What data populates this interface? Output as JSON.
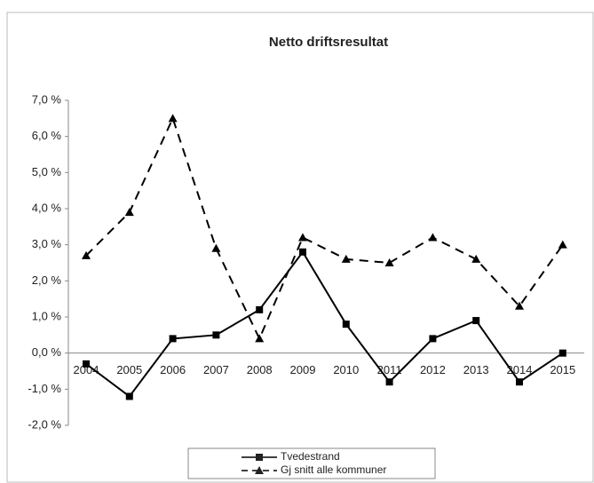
{
  "chart_data": {
    "type": "line",
    "title": "Netto driftsresultat",
    "categories": [
      "2004",
      "2005",
      "2006",
      "2007",
      "2008",
      "2009",
      "2010",
      "2011",
      "2012",
      "2013",
      "2014",
      "2015"
    ],
    "series": [
      {
        "name": "Tvedestrand",
        "color": "#000000",
        "dash": false,
        "marker": "square",
        "values": [
          -0.3,
          -1.2,
          0.4,
          0.5,
          1.2,
          2.8,
          0.8,
          -0.8,
          0.4,
          0.9,
          -0.8,
          0.0
        ]
      },
      {
        "name": "Gj snitt alle kommuner",
        "color": "#000000",
        "dash": true,
        "marker": "triangle",
        "values": [
          2.7,
          3.9,
          6.5,
          2.9,
          0.4,
          3.2,
          2.6,
          2.5,
          3.2,
          2.6,
          1.3,
          3.0
        ]
      }
    ],
    "ylim": [
      -2,
      7
    ],
    "yticks": [
      {
        "value": -2,
        "label": "-2,0 %"
      },
      {
        "value": -1,
        "label": "-1,0 %"
      },
      {
        "value": 0,
        "label": "0,0 %"
      },
      {
        "value": 1,
        "label": "1,0 %"
      },
      {
        "value": 2,
        "label": "2,0 %"
      },
      {
        "value": 3,
        "label": "3,0 %"
      },
      {
        "value": 4,
        "label": "4,0 %"
      },
      {
        "value": 5,
        "label": "5,0 %"
      },
      {
        "value": 6,
        "label": "6,0 %"
      },
      {
        "value": 7,
        "label": "7,0 %"
      }
    ],
    "grid": false,
    "legend": "bottom"
  }
}
